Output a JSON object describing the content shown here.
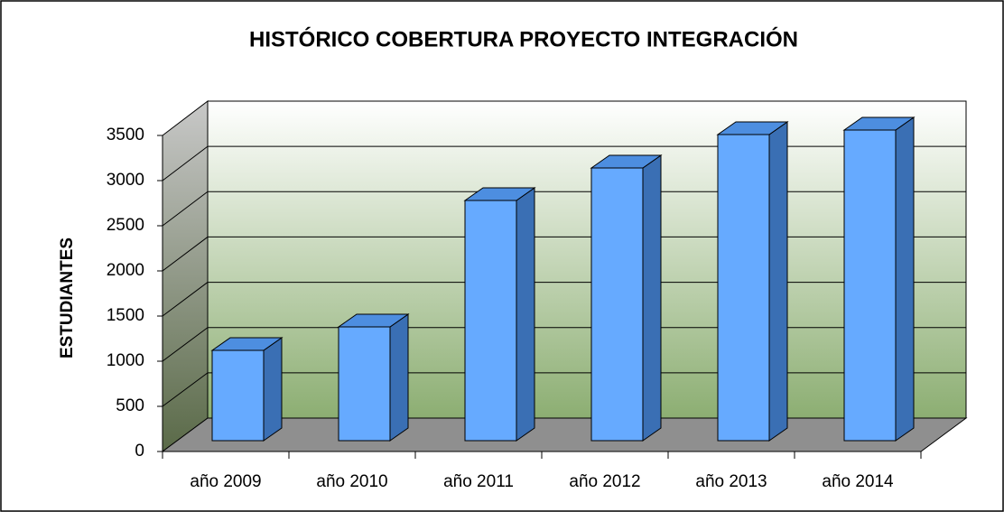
{
  "chart_data": {
    "type": "bar3d",
    "title": "HISTÓRICO  COBERTURA PROYECTO INTEGRACIÓN",
    "y_label": "ESTUDIANTES",
    "categories": [
      "año 2009",
      "año 2010",
      "año 2011",
      "año 2012",
      "año 2013",
      "año 2014"
    ],
    "values": [
      1000,
      1260,
      2660,
      3020,
      3390,
      3440
    ],
    "color": "#66aaff",
    "ylim": [
      0,
      3500
    ],
    "yticks": [
      0,
      500,
      1000,
      1500,
      2000,
      2500,
      3000,
      3500
    ],
    "grid": true
  }
}
